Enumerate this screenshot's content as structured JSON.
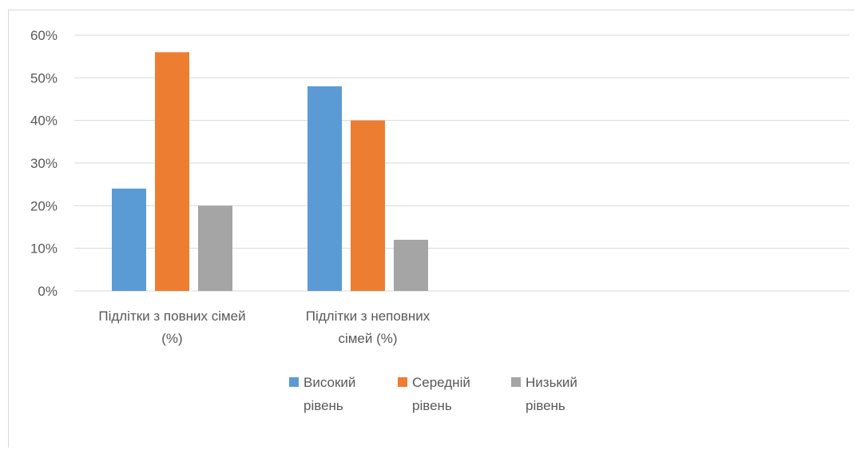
{
  "chart_data": {
    "type": "bar",
    "categories": [
      [
        "Підлітки з повних сімей",
        "(%)"
      ],
      [
        "Підлітки з неповних",
        "сімей (%)"
      ]
    ],
    "series": [
      {
        "name": [
          "Високий",
          "рівень"
        ],
        "color": "#5B9BD5",
        "values": [
          24,
          48
        ]
      },
      {
        "name": [
          "Середній",
          "рівень"
        ],
        "color": "#ED7D31",
        "values": [
          56,
          40
        ]
      },
      {
        "name": [
          "Низький",
          "рівень"
        ],
        "color": "#A5A5A5",
        "values": [
          20,
          12
        ]
      }
    ],
    "ylim": [
      0,
      60
    ],
    "yticks": [
      "0%",
      "10%",
      "20%",
      "30%",
      "40%",
      "50%",
      "60%"
    ],
    "ytick_values": [
      0,
      10,
      20,
      30,
      40,
      50,
      60
    ],
    "grid": true,
    "legend_position": "bottom",
    "colors": {
      "grid": "#d9d9d9",
      "text": "#595959"
    }
  }
}
